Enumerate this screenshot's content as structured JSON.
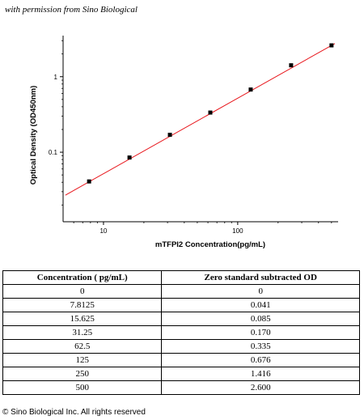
{
  "caption": "with permission from Sino Biological",
  "chart_data": {
    "type": "scatter",
    "xlabel": "mTFPI2  Concentration(pg/mL)",
    "ylabel": "Optical Density (OD450nm)",
    "x_scale": "log",
    "y_scale": "log",
    "xlim": [
      5,
      560
    ],
    "ylim": [
      0.012,
      3.5
    ],
    "x_ticks": [
      10,
      100
    ],
    "y_ticks": [
      0.1,
      1
    ],
    "y_tick_labels": [
      "0.1",
      "1"
    ],
    "x_tick_labels": [
      "10",
      "100"
    ],
    "points": [
      {
        "x": 7.8125,
        "y": 0.041
      },
      {
        "x": 15.625,
        "y": 0.085
      },
      {
        "x": 31.25,
        "y": 0.17
      },
      {
        "x": 62.5,
        "y": 0.335
      },
      {
        "x": 125,
        "y": 0.676
      },
      {
        "x": 250,
        "y": 1.416
      },
      {
        "x": 500,
        "y": 2.6
      }
    ],
    "fit_line": {
      "x": [
        5.2,
        530
      ],
      "y": [
        0.027,
        2.75
      ]
    },
    "marker_color": "#000000",
    "line_color": "#e8151b",
    "grid": false
  },
  "table": {
    "headers": [
      "Concentration ( pg/mL)",
      "Zero standard subtracted OD"
    ],
    "rows": [
      [
        "0",
        "0"
      ],
      [
        "7.8125",
        "0.041"
      ],
      [
        "15.625",
        "0.085"
      ],
      [
        "31.25",
        "0.170"
      ],
      [
        "62.5",
        "0.335"
      ],
      [
        "125",
        "0.676"
      ],
      [
        "250",
        "1.416"
      ],
      [
        "500",
        "2.600"
      ]
    ]
  },
  "copyright": "© Sino Biological Inc. All rights reserved"
}
